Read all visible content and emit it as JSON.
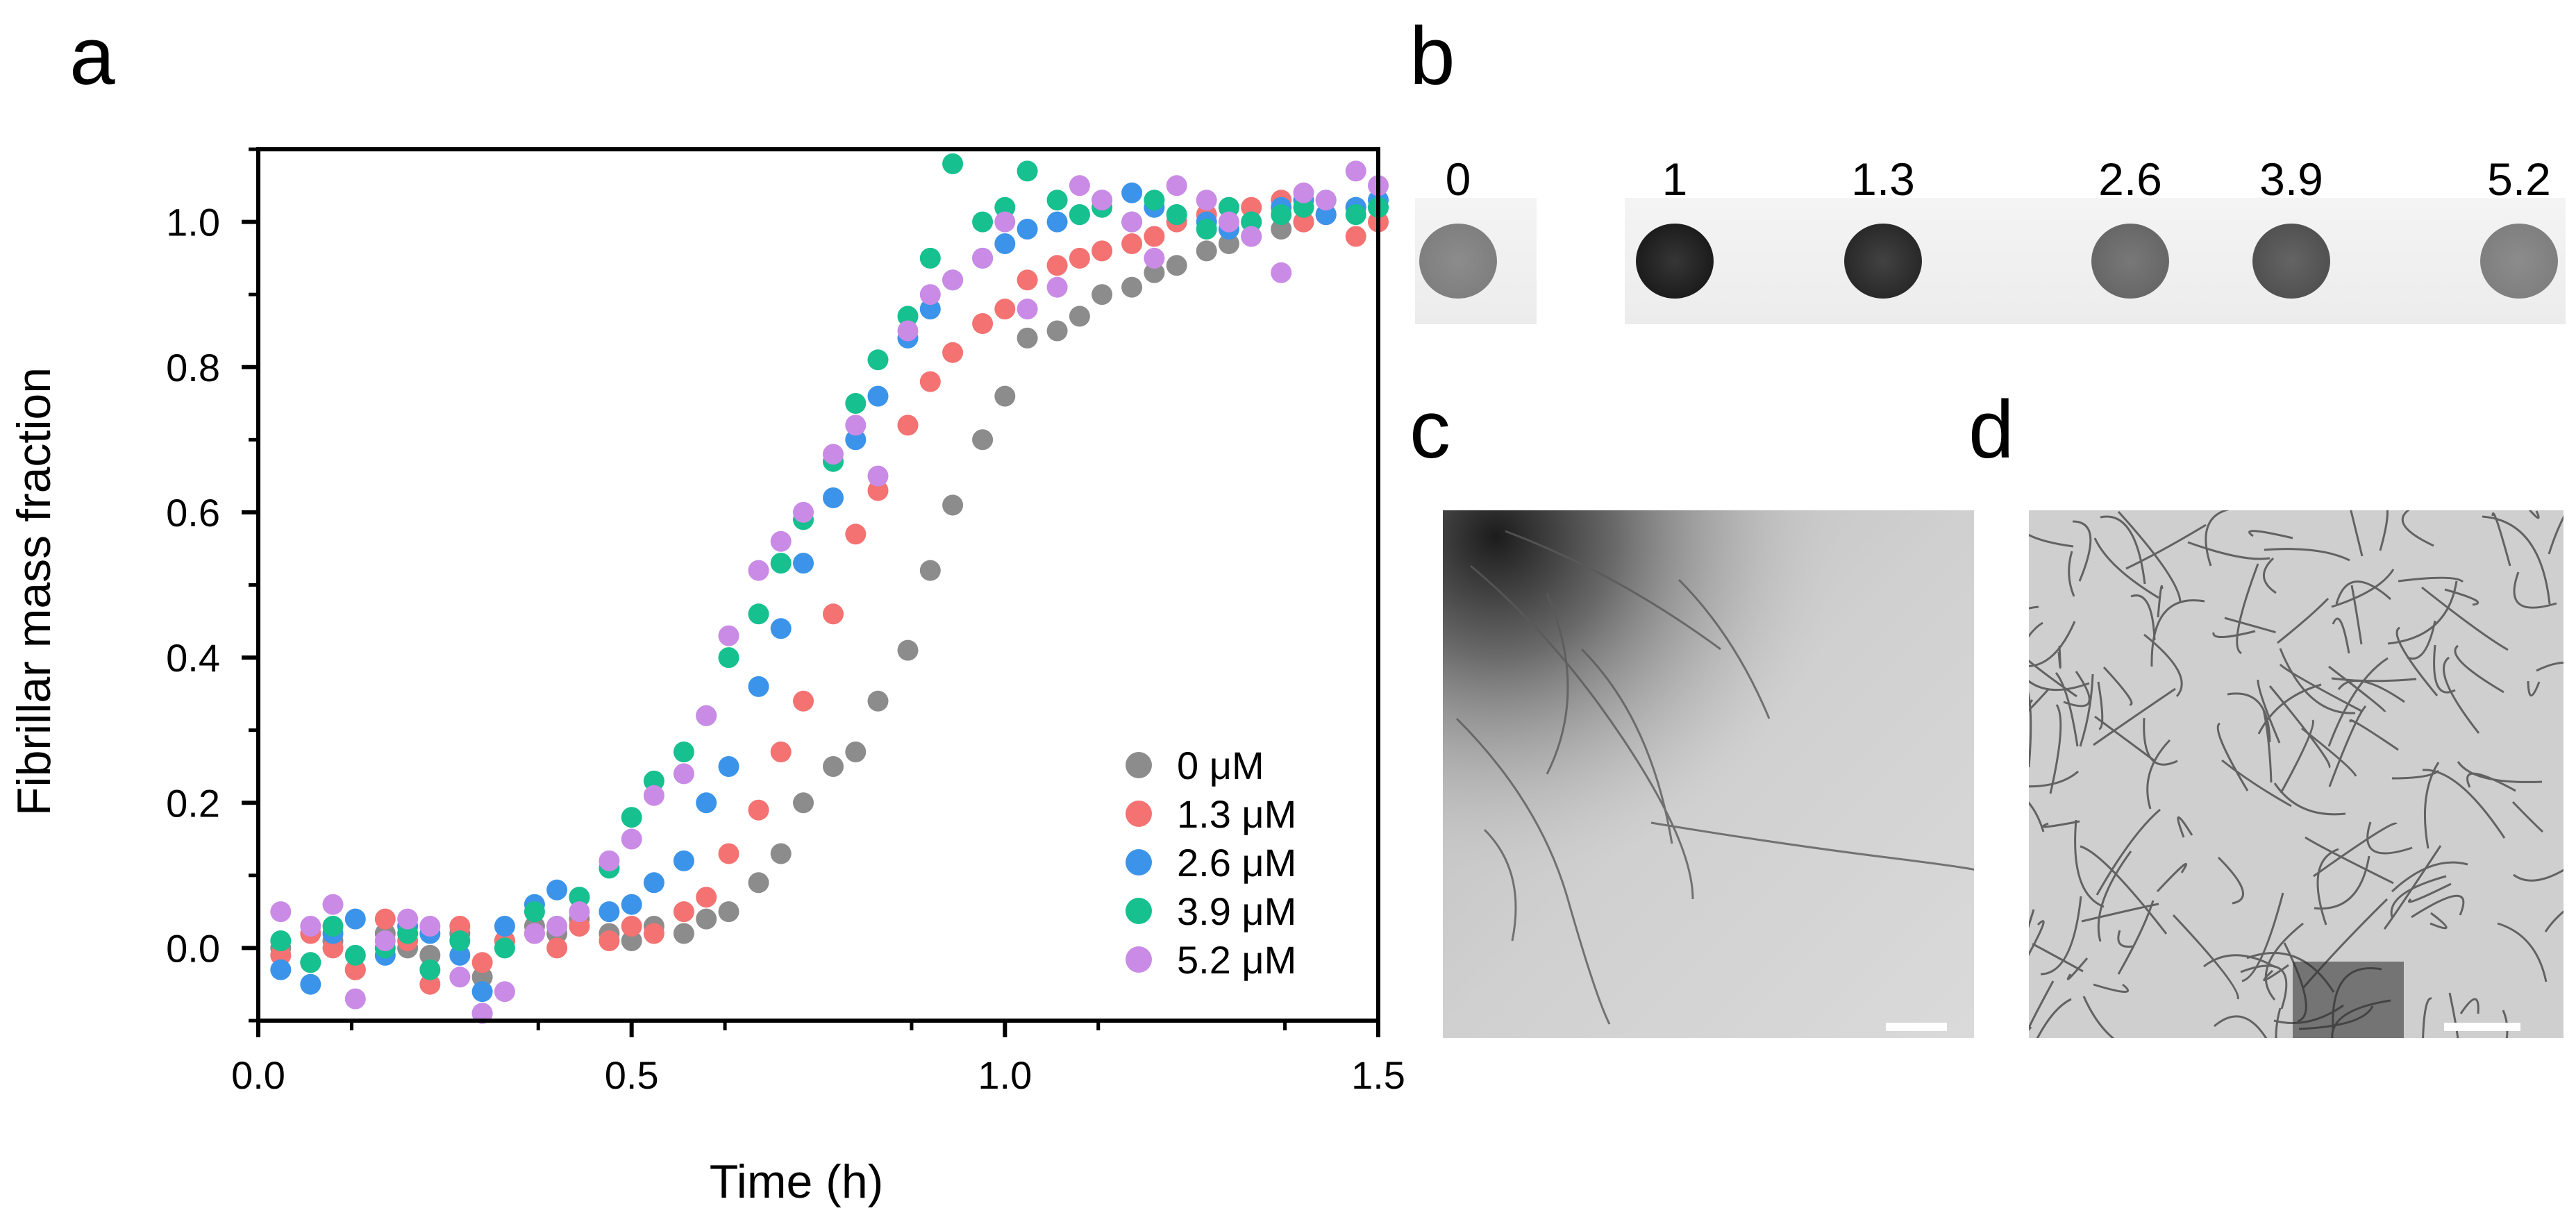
{
  "panels": {
    "a": "a",
    "b": "b",
    "c": "c",
    "d": "d"
  },
  "chart_data": {
    "type": "scatter",
    "xlabel": "Time (h)",
    "ylabel": "Fibrillar mass fraction",
    "xlim": [
      0.0,
      1.5
    ],
    "ylim": [
      -0.1,
      1.1
    ],
    "x_ticks": [
      0.0,
      0.5,
      1.0,
      1.5
    ],
    "x_tick_labels": [
      "0.0",
      "0.5",
      "1.0",
      "1.5"
    ],
    "y_ticks": [
      0.0,
      0.2,
      0.4,
      0.6,
      0.8,
      1.0
    ],
    "y_tick_labels": [
      "0.0",
      "0.2",
      "0.4",
      "0.6",
      "0.8",
      "1.0"
    ],
    "legend_position": "bottom-right",
    "series": [
      {
        "name": "0 μM",
        "color": "#8c8c8c",
        "t_half": 0.87,
        "k": 11.0,
        "x": [
          0.03,
          0.07,
          0.1,
          0.13,
          0.17,
          0.2,
          0.23,
          0.27,
          0.3,
          0.33,
          0.37,
          0.4,
          0.43,
          0.47,
          0.5,
          0.53,
          0.57,
          0.6,
          0.63,
          0.67,
          0.7,
          0.73,
          0.77,
          0.8,
          0.83,
          0.87,
          0.9,
          0.93,
          0.97,
          1.0,
          1.03,
          1.07,
          1.1,
          1.13,
          1.17,
          1.2,
          1.23,
          1.27,
          1.3,
          1.33,
          1.37,
          1.4,
          1.43,
          1.47,
          1.5
        ],
        "y": [
          0.0,
          -0.02,
          0.01,
          -0.03,
          0.02,
          0.0,
          -0.01,
          0.02,
          -0.04,
          0.01,
          0.03,
          0.02,
          0.04,
          0.02,
          0.01,
          0.03,
          0.02,
          0.04,
          0.05,
          0.09,
          0.13,
          0.2,
          0.25,
          0.27,
          0.34,
          0.41,
          0.52,
          0.61,
          0.7,
          0.76,
          0.84,
          0.85,
          0.87,
          0.9,
          0.91,
          0.93,
          0.94,
          0.96,
          0.97,
          0.98,
          0.99,
          1.0,
          1.01,
          1.02,
          1.02
        ]
      },
      {
        "name": "1.3 μM",
        "color": "#f47272",
        "t_half": 0.78,
        "k": 11.0,
        "x": [
          0.03,
          0.07,
          0.1,
          0.13,
          0.17,
          0.2,
          0.23,
          0.27,
          0.3,
          0.33,
          0.37,
          0.4,
          0.43,
          0.47,
          0.5,
          0.53,
          0.57,
          0.6,
          0.63,
          0.67,
          0.7,
          0.73,
          0.77,
          0.8,
          0.83,
          0.87,
          0.9,
          0.93,
          0.97,
          1.0,
          1.03,
          1.07,
          1.1,
          1.13,
          1.17,
          1.2,
          1.23,
          1.27,
          1.3,
          1.33,
          1.37,
          1.4,
          1.43,
          1.47,
          1.5
        ],
        "y": [
          -0.01,
          0.02,
          0.0,
          -0.03,
          0.04,
          0.01,
          -0.05,
          0.03,
          -0.02,
          0.01,
          0.02,
          0.0,
          0.03,
          0.01,
          0.03,
          0.02,
          0.05,
          0.07,
          0.13,
          0.19,
          0.27,
          0.34,
          0.46,
          0.57,
          0.63,
          0.72,
          0.78,
          0.82,
          0.86,
          0.88,
          0.92,
          0.94,
          0.95,
          0.96,
          0.97,
          0.98,
          1.0,
          1.01,
          1.02,
          1.02,
          1.03,
          1.0,
          1.01,
          0.98,
          1.0
        ]
      },
      {
        "name": "2.6 μM",
        "color": "#3b94ea",
        "t_half": 0.7,
        "k": 11.0,
        "x": [
          0.03,
          0.07,
          0.1,
          0.13,
          0.17,
          0.2,
          0.23,
          0.27,
          0.3,
          0.33,
          0.37,
          0.4,
          0.43,
          0.47,
          0.5,
          0.53,
          0.57,
          0.6,
          0.63,
          0.67,
          0.7,
          0.73,
          0.77,
          0.8,
          0.83,
          0.87,
          0.9,
          0.93,
          0.97,
          1.0,
          1.03,
          1.07,
          1.1,
          1.13,
          1.17,
          1.2,
          1.23,
          1.27,
          1.3,
          1.33,
          1.37,
          1.4,
          1.43,
          1.47,
          1.5
        ],
        "y": [
          -0.03,
          -0.05,
          0.02,
          0.04,
          -0.01,
          0.03,
          0.02,
          -0.01,
          -0.06,
          0.03,
          0.06,
          0.08,
          0.07,
          0.05,
          0.06,
          0.09,
          0.12,
          0.2,
          0.25,
          0.36,
          0.44,
          0.53,
          0.62,
          0.7,
          0.76,
          0.84,
          0.88,
          0.92,
          0.95,
          0.97,
          0.99,
          1.0,
          1.01,
          1.03,
          1.04,
          1.02,
          1.01,
          1.0,
          0.99,
          1.0,
          1.02,
          1.03,
          1.01,
          1.02,
          1.03
        ]
      },
      {
        "name": "3.9 μM",
        "color": "#16c08f",
        "t_half": 0.65,
        "k": 11.0,
        "x": [
          0.03,
          0.07,
          0.1,
          0.13,
          0.17,
          0.2,
          0.23,
          0.27,
          0.3,
          0.33,
          0.37,
          0.4,
          0.43,
          0.47,
          0.5,
          0.53,
          0.57,
          0.6,
          0.63,
          0.67,
          0.7,
          0.73,
          0.77,
          0.8,
          0.83,
          0.87,
          0.9,
          0.93,
          0.97,
          1.0,
          1.03,
          1.07,
          1.1,
          1.13,
          1.17,
          1.2,
          1.23,
          1.27,
          1.3,
          1.33,
          1.37,
          1.4,
          1.43,
          1.47,
          1.5
        ],
        "y": [
          0.01,
          -0.02,
          0.03,
          -0.01,
          0.0,
          0.02,
          -0.03,
          0.01,
          -0.09,
          0.0,
          0.05,
          0.03,
          0.07,
          0.11,
          0.18,
          0.23,
          0.27,
          0.32,
          0.4,
          0.46,
          0.53,
          0.59,
          0.67,
          0.75,
          0.81,
          0.87,
          0.95,
          1.08,
          1.0,
          1.02,
          1.07,
          1.03,
          1.01,
          1.02,
          1.0,
          1.03,
          1.01,
          0.99,
          1.02,
          1.0,
          1.01,
          1.02,
          1.03,
          1.01,
          1.02
        ]
      },
      {
        "name": "5.2 μM",
        "color": "#c98be6",
        "t_half": 0.63,
        "k": 10.0,
        "x": [
          0.03,
          0.07,
          0.1,
          0.13,
          0.17,
          0.2,
          0.23,
          0.27,
          0.3,
          0.33,
          0.37,
          0.4,
          0.43,
          0.47,
          0.5,
          0.53,
          0.57,
          0.6,
          0.63,
          0.67,
          0.7,
          0.73,
          0.77,
          0.8,
          0.83,
          0.87,
          0.9,
          0.93,
          0.97,
          1.0,
          1.03,
          1.07,
          1.1,
          1.13,
          1.17,
          1.2,
          1.23,
          1.27,
          1.3,
          1.33,
          1.37,
          1.4,
          1.43,
          1.47,
          1.5
        ],
        "y": [
          0.05,
          0.03,
          0.06,
          -0.07,
          0.01,
          0.04,
          0.03,
          -0.04,
          -0.09,
          -0.06,
          0.02,
          0.03,
          0.05,
          0.12,
          0.15,
          0.21,
          0.24,
          0.32,
          0.43,
          0.52,
          0.56,
          0.6,
          0.68,
          0.72,
          0.65,
          0.85,
          0.9,
          0.92,
          0.95,
          1.0,
          0.88,
          0.91,
          1.05,
          1.03,
          1.0,
          0.95,
          1.05,
          1.03,
          1.0,
          0.98,
          0.93,
          1.04,
          1.03,
          1.07,
          1.05
        ]
      }
    ]
  },
  "panel_b": {
    "concentration_labels": [
      "0",
      "1",
      "1.3",
      "2.6",
      "3.9",
      "5.2"
    ],
    "dot_darkness": [
      0.45,
      0.88,
      0.82,
      0.55,
      0.65,
      0.45
    ]
  }
}
